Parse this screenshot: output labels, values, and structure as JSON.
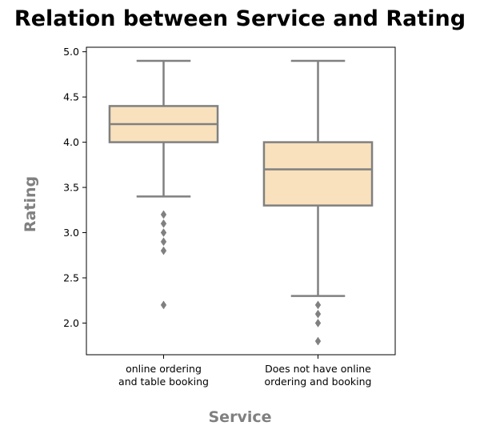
{
  "chart_data": {
    "type": "box",
    "title": "Relation between Service and Rating",
    "xlabel": "Service",
    "ylabel": "Rating",
    "ylim": [
      1.65,
      5.05
    ],
    "yticks": [
      2.0,
      2.5,
      3.0,
      3.5,
      4.0,
      4.5,
      5.0
    ],
    "ytick_labels": [
      "2.0",
      "2.5",
      "3.0",
      "3.5",
      "4.0",
      "4.5",
      "5.0"
    ],
    "grid": false,
    "legend": "none",
    "colors": {
      "box_fill": "#f9e1bd",
      "box_edge": "#808080",
      "outlier": "#808080"
    },
    "categories": [
      {
        "label_lines": [
          "online ordering",
          "and table booking"
        ],
        "whisker_low": 3.4,
        "q1": 4.0,
        "median": 4.2,
        "q3": 4.4,
        "whisker_high": 4.9,
        "outliers": [
          3.2,
          3.1,
          3.0,
          2.9,
          2.8,
          2.2
        ]
      },
      {
        "label_lines": [
          "Does not have online",
          "ordering and booking"
        ],
        "whisker_low": 2.3,
        "q1": 3.3,
        "median": 3.7,
        "q3": 4.0,
        "whisker_high": 4.9,
        "outliers": [
          2.2,
          2.1,
          2.0,
          1.8
        ]
      }
    ]
  }
}
